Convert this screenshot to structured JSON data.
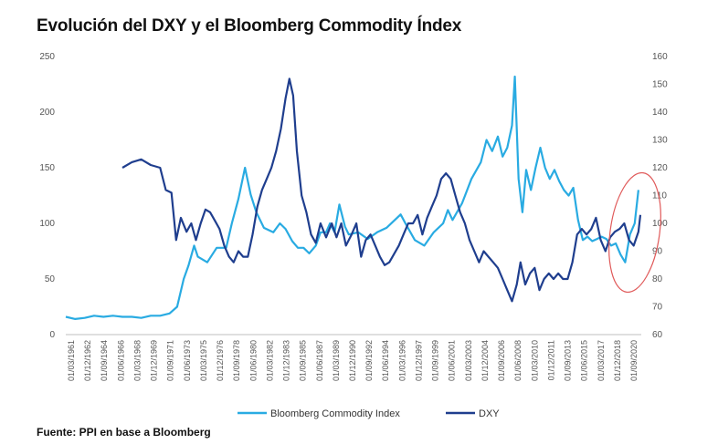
{
  "chart_data": {
    "type": "line",
    "title": "Evolución del DXY y el Bloomberg Commodity Índex",
    "source": "Fuente: PPI en base a  Bloomberg",
    "x_tick_labels": [
      "01/03/1961",
      "01/12/1962",
      "01/09/1964",
      "01/06/1966",
      "01/03/1968",
      "01/12/1969",
      "01/09/1971",
      "01/06/1973",
      "01/03/1975",
      "01/12/1976",
      "01/09/1978",
      "01/06/1980",
      "01/03/1982",
      "01/12/1983",
      "01/09/1985",
      "01/06/1987",
      "01/03/1989",
      "01/12/1990",
      "01/09/1992",
      "01/06/1994",
      "01/03/1996",
      "01/12/1997",
      "01/09/1999",
      "01/06/2001",
      "01/03/2003",
      "01/12/2004",
      "01/09/2006",
      "01/06/2008",
      "01/03/2010",
      "01/12/2011",
      "01/09/2013",
      "01/06/2015",
      "01/03/2017",
      "01/12/2018",
      "01/09/2020"
    ],
    "y_left": {
      "ticks": [
        0,
        50,
        100,
        150,
        200,
        250
      ],
      "ylim": [
        0,
        250
      ]
    },
    "y_right": {
      "ticks": [
        60,
        70,
        80,
        90,
        100,
        110,
        120,
        130,
        140,
        150,
        160
      ],
      "ylim": [
        60,
        160
      ]
    },
    "x_range": [
      1961,
      2022
    ],
    "series": [
      {
        "name": "Bloomberg Commodity Index",
        "axis": "left",
        "color": "#29ABE2",
        "points": [
          [
            1961,
            16
          ],
          [
            1962,
            14
          ],
          [
            1963,
            15
          ],
          [
            1964,
            17
          ],
          [
            1965,
            16
          ],
          [
            1966,
            17
          ],
          [
            1967,
            16
          ],
          [
            1968,
            16
          ],
          [
            1969,
            15
          ],
          [
            1970,
            17
          ],
          [
            1971,
            17
          ],
          [
            1972,
            19
          ],
          [
            1972.8,
            25
          ],
          [
            1973.5,
            50
          ],
          [
            1974,
            62
          ],
          [
            1974.6,
            80
          ],
          [
            1975,
            70
          ],
          [
            1976,
            65
          ],
          [
            1977,
            78
          ],
          [
            1978,
            78
          ],
          [
            1978.6,
            100
          ],
          [
            1979.3,
            122
          ],
          [
            1980,
            150
          ],
          [
            1980.6,
            126
          ],
          [
            1981.2,
            110
          ],
          [
            1982,
            96
          ],
          [
            1983,
            92
          ],
          [
            1983.7,
            100
          ],
          [
            1984.3,
            95
          ],
          [
            1985,
            84
          ],
          [
            1985.6,
            78
          ],
          [
            1986.2,
            78
          ],
          [
            1986.8,
            73
          ],
          [
            1987.5,
            80
          ],
          [
            1988,
            92
          ],
          [
            1988.6,
            92
          ],
          [
            1989,
            100
          ],
          [
            1989.5,
            92
          ],
          [
            1990,
            117
          ],
          [
            1990.6,
            97
          ],
          [
            1991,
            90
          ],
          [
            1992,
            92
          ],
          [
            1993,
            86
          ],
          [
            1994,
            92
          ],
          [
            1995,
            96
          ],
          [
            1996,
            104
          ],
          [
            1996.5,
            108
          ],
          [
            1997,
            100
          ],
          [
            1998,
            85
          ],
          [
            1999,
            80
          ],
          [
            2000,
            92
          ],
          [
            2001,
            100
          ],
          [
            2001.5,
            112
          ],
          [
            2002,
            103
          ],
          [
            2003,
            118
          ],
          [
            2004,
            140
          ],
          [
            2005,
            155
          ],
          [
            2005.6,
            175
          ],
          [
            2006.2,
            165
          ],
          [
            2006.8,
            178
          ],
          [
            2007.3,
            160
          ],
          [
            2007.8,
            168
          ],
          [
            2008.3,
            188
          ],
          [
            2008.6,
            232
          ],
          [
            2009,
            140
          ],
          [
            2009.4,
            110
          ],
          [
            2009.8,
            148
          ],
          [
            2010.3,
            130
          ],
          [
            2010.8,
            150
          ],
          [
            2011.3,
            168
          ],
          [
            2011.8,
            150
          ],
          [
            2012.3,
            140
          ],
          [
            2012.8,
            148
          ],
          [
            2013.3,
            138
          ],
          [
            2013.8,
            130
          ],
          [
            2014.3,
            125
          ],
          [
            2014.8,
            132
          ],
          [
            2015.3,
            103
          ],
          [
            2015.8,
            85
          ],
          [
            2016.3,
            88
          ],
          [
            2016.8,
            84
          ],
          [
            2017.3,
            86
          ],
          [
            2017.8,
            88
          ],
          [
            2018.3,
            86
          ],
          [
            2018.8,
            80
          ],
          [
            2019.3,
            82
          ],
          [
            2019.8,
            72
          ],
          [
            2020.3,
            65
          ],
          [
            2020.8,
            90
          ],
          [
            2021.3,
            100
          ],
          [
            2021.7,
            130
          ]
        ]
      },
      {
        "name": "DXY",
        "axis": "right",
        "color": "#1F3E8E",
        "points": [
          [
            1967,
            120
          ],
          [
            1968,
            122
          ],
          [
            1969,
            123
          ],
          [
            1970,
            121
          ],
          [
            1971,
            120
          ],
          [
            1971.6,
            112
          ],
          [
            1972.2,
            111
          ],
          [
            1972.7,
            94
          ],
          [
            1973.2,
            102
          ],
          [
            1973.8,
            97
          ],
          [
            1974.3,
            100
          ],
          [
            1974.8,
            94
          ],
          [
            1975.3,
            100
          ],
          [
            1975.8,
            105
          ],
          [
            1976.3,
            104
          ],
          [
            1976.8,
            101
          ],
          [
            1977.3,
            98
          ],
          [
            1977.8,
            92
          ],
          [
            1978.3,
            88
          ],
          [
            1978.8,
            86
          ],
          [
            1979.3,
            90
          ],
          [
            1979.8,
            88
          ],
          [
            1980.3,
            88
          ],
          [
            1980.8,
            96
          ],
          [
            1981.3,
            106
          ],
          [
            1981.8,
            112
          ],
          [
            1982.3,
            116
          ],
          [
            1982.8,
            120
          ],
          [
            1983.3,
            126
          ],
          [
            1983.8,
            134
          ],
          [
            1984.3,
            145
          ],
          [
            1984.7,
            152
          ],
          [
            1985.1,
            146
          ],
          [
            1985.5,
            126
          ],
          [
            1986,
            110
          ],
          [
            1986.5,
            104
          ],
          [
            1987,
            96
          ],
          [
            1987.5,
            93
          ],
          [
            1988,
            100
          ],
          [
            1988.6,
            95
          ],
          [
            1989.2,
            100
          ],
          [
            1989.7,
            95
          ],
          [
            1990.2,
            100
          ],
          [
            1990.7,
            92
          ],
          [
            1991.3,
            96
          ],
          [
            1991.8,
            100
          ],
          [
            1992.3,
            88
          ],
          [
            1992.8,
            94
          ],
          [
            1993.3,
            96
          ],
          [
            1993.8,
            92
          ],
          [
            1994.3,
            88
          ],
          [
            1994.8,
            85
          ],
          [
            1995.3,
            86
          ],
          [
            1995.8,
            89
          ],
          [
            1996.3,
            92
          ],
          [
            1996.8,
            96
          ],
          [
            1997.3,
            100
          ],
          [
            1997.8,
            100
          ],
          [
            1998.3,
            103
          ],
          [
            1998.8,
            96
          ],
          [
            1999.3,
            102
          ],
          [
            1999.8,
            106
          ],
          [
            2000.3,
            110
          ],
          [
            2000.8,
            116
          ],
          [
            2001.3,
            118
          ],
          [
            2001.8,
            116
          ],
          [
            2002.3,
            110
          ],
          [
            2002.8,
            104
          ],
          [
            2003.3,
            100
          ],
          [
            2003.8,
            94
          ],
          [
            2004.3,
            90
          ],
          [
            2004.8,
            86
          ],
          [
            2005.3,
            90
          ],
          [
            2005.8,
            88
          ],
          [
            2006.3,
            86
          ],
          [
            2006.8,
            84
          ],
          [
            2007.3,
            80
          ],
          [
            2007.8,
            76
          ],
          [
            2008.3,
            72
          ],
          [
            2008.8,
            78
          ],
          [
            2009.2,
            86
          ],
          [
            2009.7,
            78
          ],
          [
            2010.2,
            82
          ],
          [
            2010.7,
            84
          ],
          [
            2011.2,
            76
          ],
          [
            2011.7,
            80
          ],
          [
            2012.2,
            82
          ],
          [
            2012.7,
            80
          ],
          [
            2013.2,
            82
          ],
          [
            2013.7,
            80
          ],
          [
            2014.2,
            80
          ],
          [
            2014.7,
            86
          ],
          [
            2015.2,
            96
          ],
          [
            2015.7,
            98
          ],
          [
            2016.2,
            96
          ],
          [
            2016.7,
            98
          ],
          [
            2017.2,
            102
          ],
          [
            2017.7,
            94
          ],
          [
            2018.2,
            90
          ],
          [
            2018.7,
            95
          ],
          [
            2019.2,
            97
          ],
          [
            2019.7,
            98
          ],
          [
            2020.2,
            100
          ],
          [
            2020.7,
            94
          ],
          [
            2021.2,
            92
          ],
          [
            2021.7,
            97
          ],
          [
            2021.9,
            103
          ]
        ]
      }
    ],
    "annotations": [
      {
        "type": "ellipse",
        "description": "red circle highlighting recent period",
        "color": "#E05A5A"
      }
    ],
    "legend": {
      "position": "bottom",
      "entries": [
        "Bloomberg Commodity Index",
        "DXY"
      ]
    },
    "grid": false
  }
}
